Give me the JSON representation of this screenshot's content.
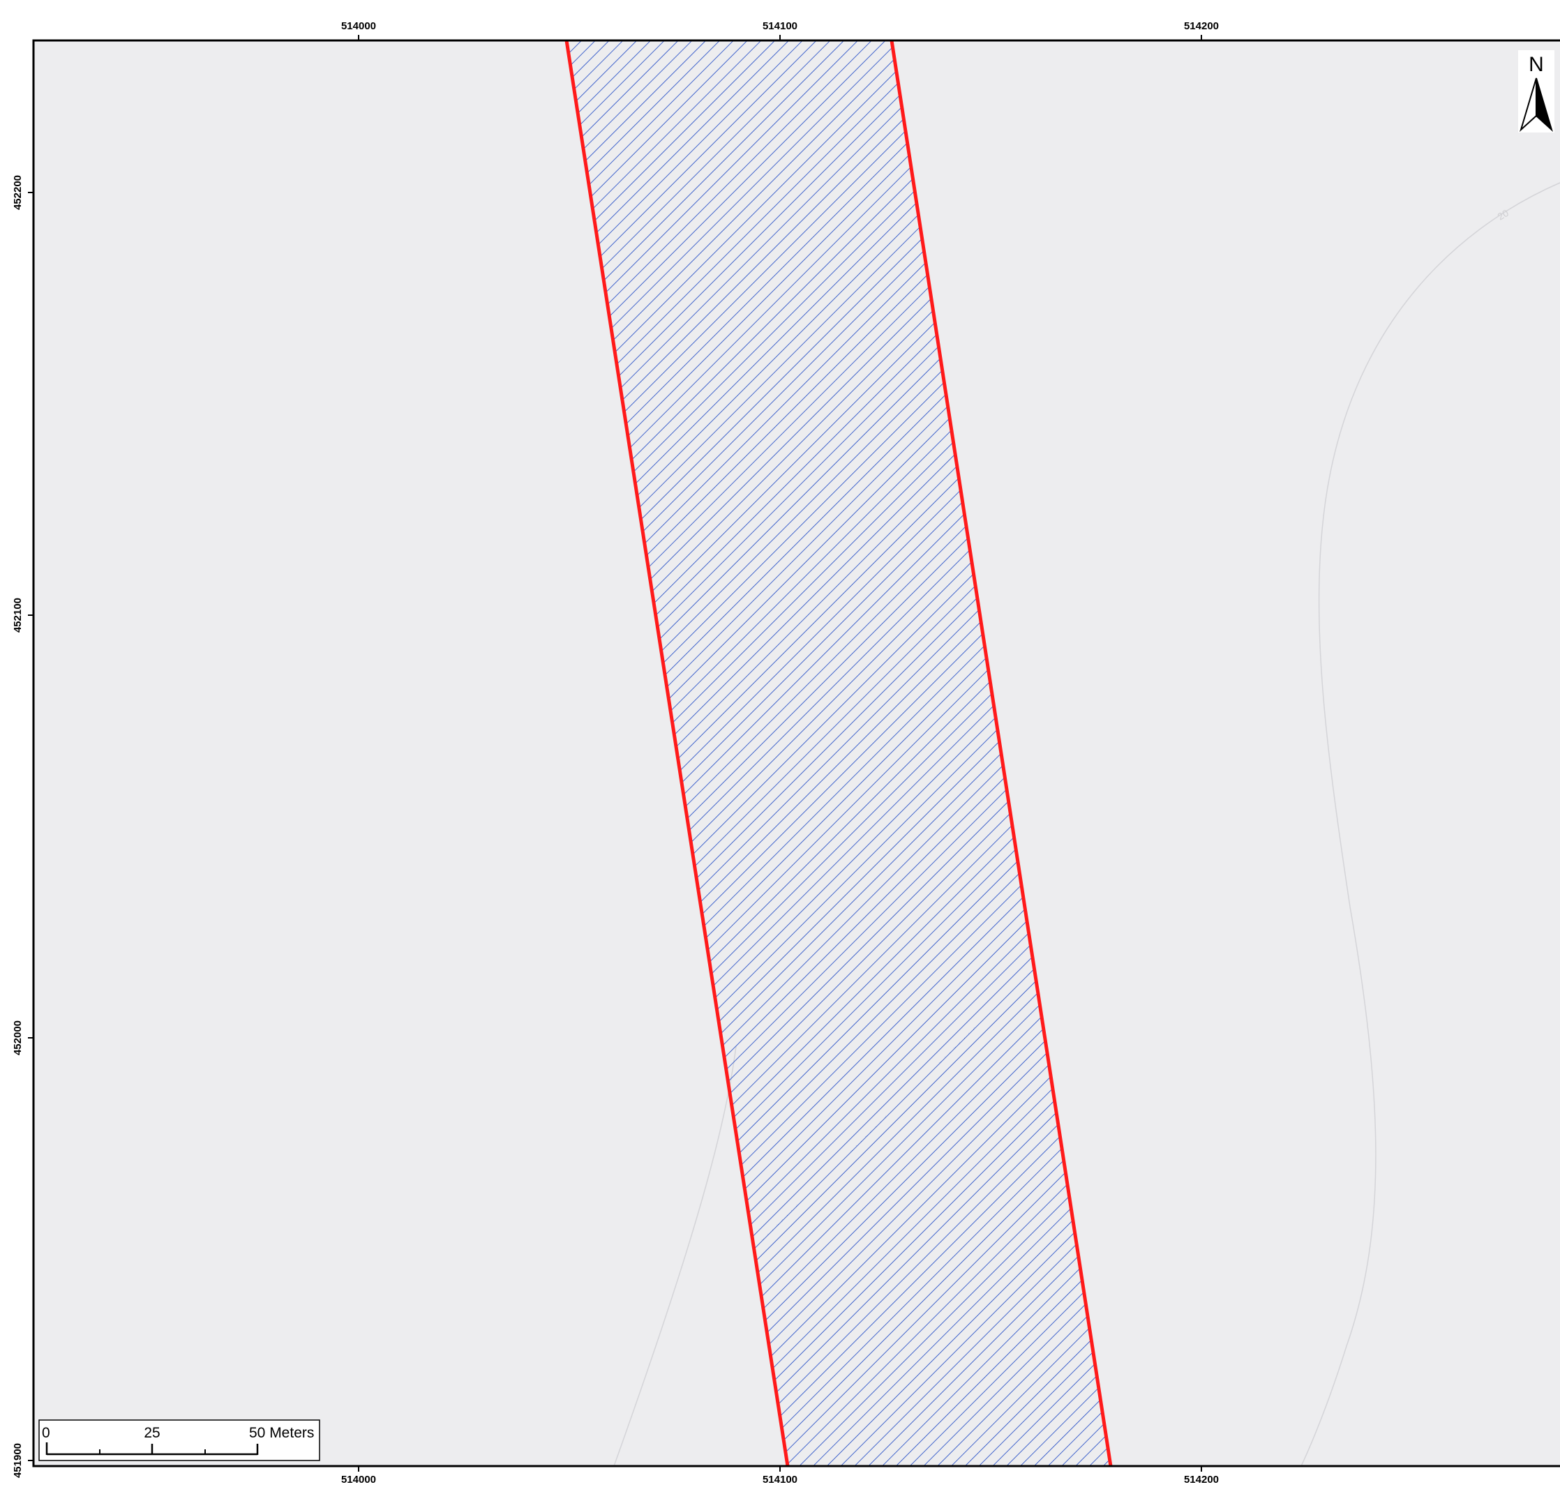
{
  "map": {
    "background_color": "#ededef",
    "frame_color": "#000000",
    "parcel": {
      "outline_color": "#ff1a1a",
      "hatch_color": "#2e55c8"
    },
    "contour": {
      "color": "#d4d4d8",
      "label": "20"
    }
  },
  "grid": {
    "top_labels": [
      "514000",
      "514100",
      "514200"
    ],
    "bottom_labels": [
      "514000",
      "514100",
      "514200"
    ],
    "left_labels": [
      "452200",
      "452100",
      "452000",
      "451900"
    ]
  },
  "north_arrow": {
    "label": "N",
    "icon": "north-arrow-icon"
  },
  "scale_bar": {
    "label_zero": "0",
    "label_mid": "25",
    "label_end": "50 Meters"
  }
}
